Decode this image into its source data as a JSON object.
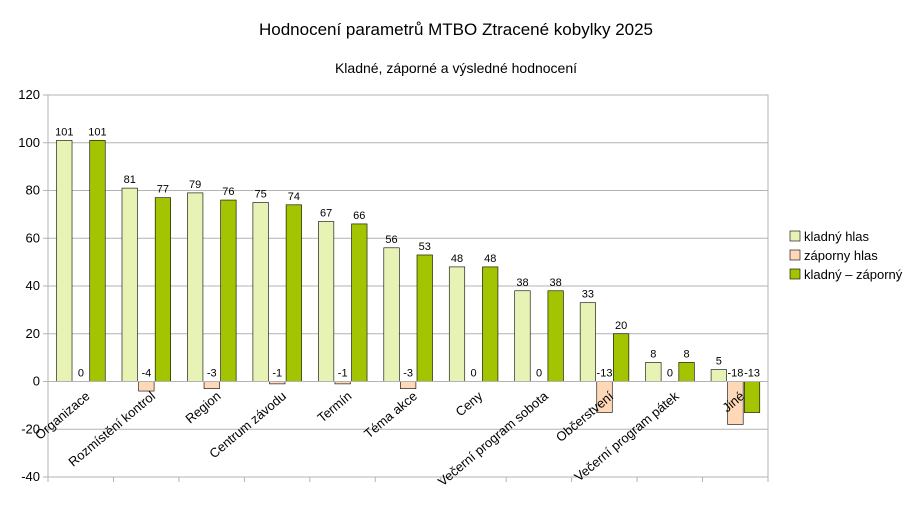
{
  "chart_data": {
    "type": "bar",
    "title": "Hodnocení parametrů MTBO Ztracené kobylky 2025",
    "subtitle": "Kladné, záporné a výsledné hodnocení",
    "categories": [
      "Organizace",
      "Rozmístění kontrol",
      "Region",
      "Centrum závodu",
      "Termín",
      "Téma akce",
      "Ceny",
      "Večerní program sobota",
      "Občerstvení",
      "Večerní program pátek",
      "Jiné"
    ],
    "series": [
      {
        "name": "kladný hlas",
        "color": "#e6f3b4",
        "values": [
          101,
          81,
          79,
          75,
          67,
          56,
          48,
          38,
          33,
          8,
          5
        ]
      },
      {
        "name": "záporny hlas",
        "color": "#ffd9b7",
        "values": [
          0,
          -4,
          -3,
          -1,
          -1,
          -3,
          0,
          0,
          -13,
          0,
          -18
        ]
      },
      {
        "name": "kladný – záporný",
        "color": "#a3c400",
        "values": [
          101,
          77,
          76,
          74,
          66,
          53,
          48,
          38,
          20,
          8,
          -13
        ]
      }
    ],
    "y_ticks": [
      "120",
      "100",
      "80",
      "60",
      "40",
      "20",
      "0",
      "-20",
      "-40"
    ],
    "ylim": [
      -40,
      120
    ],
    "grid": true,
    "legend_position": "right"
  }
}
